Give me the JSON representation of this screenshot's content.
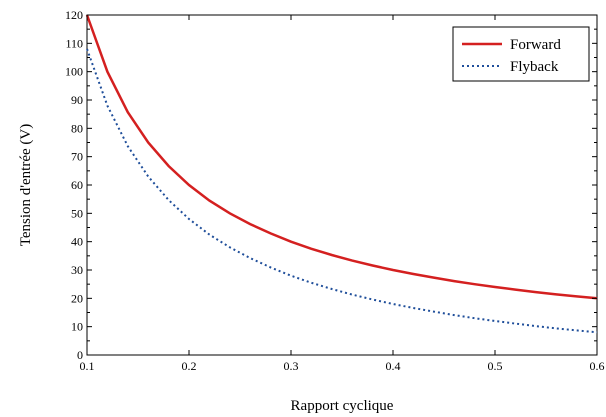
{
  "chart_data": {
    "type": "line",
    "title": "",
    "xlabel": "Rapport cyclique",
    "ylabel": "Tension d'entrée (V)",
    "xlim": [
      0.1,
      0.6
    ],
    "ylim": [
      0,
      120
    ],
    "x_ticks": [
      "0.1",
      "0.2",
      "0.3",
      "0.4",
      "0.5",
      "0.6"
    ],
    "y_ticks": [
      "0",
      "10",
      "20",
      "30",
      "40",
      "50",
      "60",
      "70",
      "80",
      "90",
      "100",
      "110",
      "120"
    ],
    "grid": false,
    "legend_position": "top-right",
    "x": [
      0.1,
      0.12,
      0.14,
      0.16,
      0.18,
      0.2,
      0.22,
      0.24,
      0.26,
      0.28,
      0.3,
      0.32,
      0.34,
      0.36,
      0.38,
      0.4,
      0.42,
      0.44,
      0.46,
      0.48,
      0.5,
      0.52,
      0.54,
      0.56,
      0.58,
      0.6
    ],
    "series": [
      {
        "name": "Forward",
        "color": "#d42020",
        "style": "solid",
        "values": [
          120,
          100,
          85.7,
          75,
          66.7,
          60,
          54.5,
          50,
          46.2,
          42.9,
          40,
          37.5,
          35.3,
          33.3,
          31.6,
          30,
          28.6,
          27.3,
          26.1,
          25,
          24,
          23.1,
          22.2,
          21.4,
          20.7,
          20
        ]
      },
      {
        "name": "Flyback",
        "color": "#1f4e9a",
        "style": "dotted",
        "values": [
          108,
          88,
          73.7,
          63,
          54.7,
          48,
          42.5,
          38,
          34.2,
          30.9,
          28,
          25.5,
          23.3,
          21.3,
          19.6,
          18,
          16.6,
          15.3,
          14.1,
          13,
          12,
          11.1,
          10.2,
          9.4,
          8.7,
          8
        ]
      }
    ]
  }
}
